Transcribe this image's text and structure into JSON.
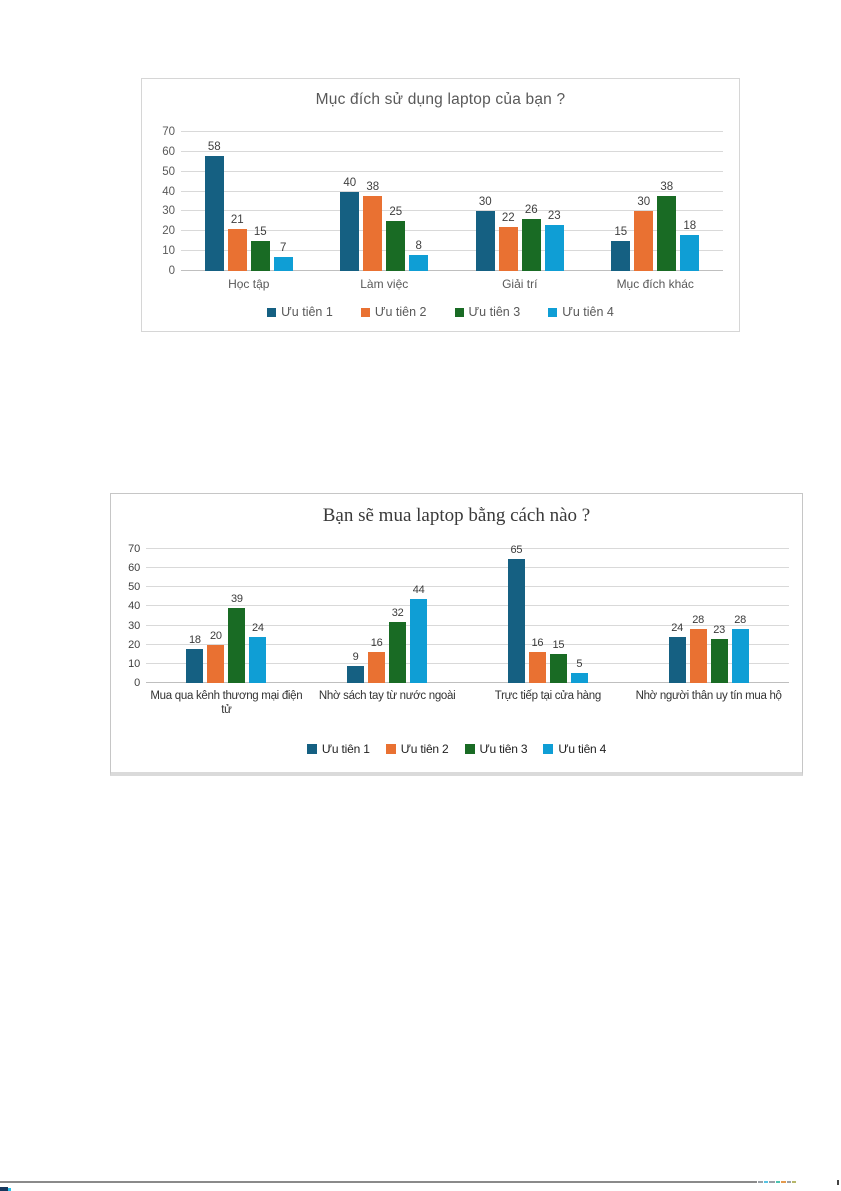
{
  "chart_data": [
    {
      "type": "bar",
      "title": "Mục đích sử dụng laptop của bạn ?",
      "categories": [
        "Học tập",
        "Làm việc",
        "Giải trí",
        "Mục đích khác"
      ],
      "series": [
        {
          "name": "Ưu tiên 1",
          "color": "#156082",
          "values": [
            58,
            40,
            30,
            15
          ]
        },
        {
          "name": "Ưu tiên 2",
          "color": "#E97132",
          "values": [
            21,
            38,
            22,
            30
          ]
        },
        {
          "name": "Ưu tiên 3",
          "color": "#196B24",
          "values": [
            15,
            25,
            26,
            38
          ]
        },
        {
          "name": "Ưu tiên 4",
          "color": "#0F9ED5",
          "values": [
            7,
            8,
            23,
            18
          ]
        }
      ],
      "xlabel": "",
      "ylabel": "",
      "ylim": [
        0,
        70
      ],
      "yticks": [
        0,
        10,
        20,
        30,
        40,
        50,
        60,
        70
      ],
      "grid": true,
      "data_labels": true,
      "legend_position": "bottom"
    },
    {
      "type": "bar",
      "title": "Bạn sẽ mua laptop bằng cách nào ?",
      "categories": [
        "Mua qua kênh thương mại điện tử",
        "Nhờ sách tay từ nước ngoài",
        "Trực tiếp tại cửa hàng",
        "Nhờ người thân uy tín mua hộ"
      ],
      "series": [
        {
          "name": "Ưu tiên 1",
          "color": "#156082",
          "values": [
            18,
            9,
            65,
            24
          ]
        },
        {
          "name": "Ưu tiên 2",
          "color": "#E97132",
          "values": [
            20,
            16,
            16,
            28
          ]
        },
        {
          "name": "Ưu tiên 3",
          "color": "#196B24",
          "values": [
            39,
            32,
            15,
            23
          ]
        },
        {
          "name": "Ưu tiên 4",
          "color": "#0F9ED5",
          "values": [
            24,
            44,
            5,
            28
          ]
        }
      ],
      "xlabel": "",
      "ylabel": "",
      "ylim": [
        0,
        70
      ],
      "yticks": [
        0,
        10,
        20,
        30,
        40,
        50,
        60,
        70
      ],
      "grid": true,
      "data_labels": true,
      "legend_position": "bottom"
    }
  ],
  "footer": {
    "divider_color": "#8A8A8A",
    "divider_width": 757,
    "mini_marks": [
      {
        "color": "#9AA0A6",
        "w": 5
      },
      {
        "color": "#59C3E3",
        "w": 4
      },
      {
        "color": "#9AA0A6",
        "w": 6
      },
      {
        "color": "#4CC3B0",
        "w": 4
      },
      {
        "color": "#E39A4E",
        "w": 5
      },
      {
        "color": "#9AA0A6",
        "w": 4
      },
      {
        "color": "#B7B76A",
        "w": 4
      }
    ],
    "right_tick_color": "#444444",
    "corner_color": "#17375E",
    "corner_width": 8,
    "corner_accent_color": "#2BC0E8"
  }
}
